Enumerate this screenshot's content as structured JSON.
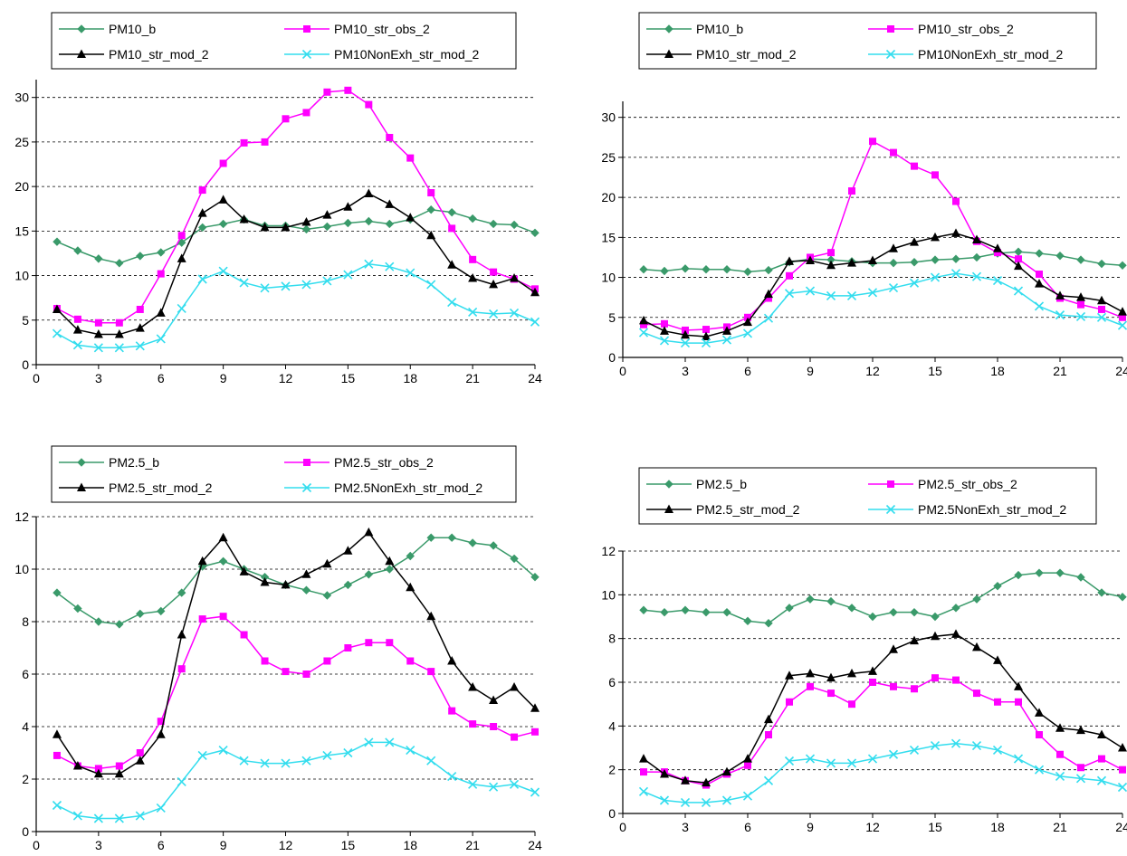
{
  "chart_data": [
    {
      "type": "line",
      "x": [
        1,
        2,
        3,
        4,
        5,
        6,
        7,
        8,
        9,
        10,
        11,
        12,
        13,
        14,
        15,
        16,
        17,
        18,
        19,
        20,
        21,
        22,
        23,
        24
      ],
      "xticks": [
        "0",
        "3",
        "6",
        "9",
        "12",
        "15",
        "18",
        "21",
        "24"
      ],
      "yticks": [
        "0",
        "5",
        "10",
        "15",
        "20",
        "25",
        "30"
      ],
      "xlim": [
        0,
        24
      ],
      "ylim": [
        0,
        32
      ],
      "grid": true,
      "legend": "top",
      "series": [
        {
          "name": "PM10_b",
          "color": "#3a9a6a",
          "marker": "diamond",
          "values": [
            13.8,
            12.8,
            11.9,
            11.4,
            12.2,
            12.6,
            13.7,
            15.4,
            15.8,
            16.3,
            15.6,
            15.6,
            15.2,
            15.5,
            15.9,
            16.1,
            15.8,
            16.3,
            17.4,
            17.1,
            16.4,
            15.8,
            15.7,
            14.8
          ]
        },
        {
          "name": "PM10_str_obs_2",
          "color": "#ff00ff",
          "marker": "square",
          "values": [
            6.3,
            5.1,
            4.7,
            4.7,
            6.2,
            10.2,
            14.5,
            19.6,
            22.6,
            24.9,
            25.0,
            27.6,
            28.3,
            30.6,
            30.8,
            29.2,
            25.5,
            23.2,
            19.3,
            15.3,
            11.8,
            10.4,
            9.6,
            8.5
          ]
        },
        {
          "name": "PM10_str_mod_2",
          "color": "#000000",
          "marker": "triangle",
          "values": [
            6.2,
            3.9,
            3.4,
            3.4,
            4.1,
            5.8,
            11.9,
            17.0,
            18.5,
            16.3,
            15.4,
            15.4,
            16.0,
            16.8,
            17.7,
            19.2,
            18.0,
            16.5,
            14.5,
            11.2,
            9.7,
            9.0,
            9.7,
            8.1
          ]
        },
        {
          "name": "PM10NonExh_str_mod_2",
          "color": "#33ddee",
          "marker": "x",
          "values": [
            3.5,
            2.2,
            1.9,
            1.9,
            2.1,
            2.9,
            6.3,
            9.6,
            10.5,
            9.2,
            8.6,
            8.8,
            9.0,
            9.4,
            10.1,
            11.3,
            11.0,
            10.3,
            9.0,
            7.0,
            5.9,
            5.7,
            5.8,
            4.8
          ]
        }
      ]
    },
    {
      "type": "line",
      "x": [
        1,
        2,
        3,
        4,
        5,
        6,
        7,
        8,
        9,
        10,
        11,
        12,
        13,
        14,
        15,
        16,
        17,
        18,
        19,
        20,
        21,
        22,
        23,
        24
      ],
      "xticks": [
        "0",
        "3",
        "6",
        "9",
        "12",
        "15",
        "18",
        "21",
        "24"
      ],
      "yticks": [
        "0",
        "5",
        "10",
        "15",
        "20",
        "25",
        "30"
      ],
      "xlim": [
        0,
        24
      ],
      "ylim": [
        0,
        32
      ],
      "grid": true,
      "legend": "top",
      "series": [
        {
          "name": "PM10_b",
          "color": "#3a9a6a",
          "marker": "diamond",
          "values": [
            11.0,
            10.8,
            11.1,
            11.0,
            11.0,
            10.7,
            10.9,
            11.9,
            12.3,
            12.2,
            12.0,
            11.8,
            11.8,
            11.9,
            12.2,
            12.3,
            12.5,
            13.0,
            13.2,
            13.0,
            12.7,
            12.2,
            11.7,
            11.5
          ]
        },
        {
          "name": "PM10_str_obs_2",
          "color": "#ff00ff",
          "marker": "square",
          "values": [
            4.1,
            4.2,
            3.4,
            3.5,
            3.8,
            5.0,
            7.4,
            10.2,
            12.5,
            13.1,
            20.8,
            27.0,
            25.6,
            23.9,
            22.8,
            19.5,
            14.5,
            13.1,
            12.3,
            10.4,
            7.4,
            6.6,
            6.0,
            5.0
          ]
        },
        {
          "name": "PM10_str_mod_2",
          "color": "#000000",
          "marker": "triangle",
          "values": [
            4.6,
            3.3,
            2.8,
            2.6,
            3.3,
            4.4,
            7.9,
            12.0,
            12.1,
            11.5,
            11.8,
            12.1,
            13.6,
            14.4,
            15.0,
            15.5,
            14.7,
            13.6,
            11.4,
            9.2,
            7.7,
            7.5,
            7.1,
            5.7
          ]
        },
        {
          "name": "PM10NonExh_str_mod_2",
          "color": "#33ddee",
          "marker": "x",
          "values": [
            3.1,
            2.1,
            1.8,
            1.8,
            2.2,
            3.0,
            4.9,
            8.0,
            8.3,
            7.7,
            7.7,
            8.1,
            8.7,
            9.3,
            10.0,
            10.5,
            10.1,
            9.6,
            8.3,
            6.4,
            5.3,
            5.1,
            5.0,
            4.0
          ]
        }
      ]
    },
    {
      "type": "line",
      "x": [
        1,
        2,
        3,
        4,
        5,
        6,
        7,
        8,
        9,
        10,
        11,
        12,
        13,
        14,
        15,
        16,
        17,
        18,
        19,
        20,
        21,
        22,
        23,
        24
      ],
      "xticks": [
        "0",
        "3",
        "6",
        "9",
        "12",
        "15",
        "18",
        "21",
        "24"
      ],
      "yticks": [
        "0",
        "2",
        "4",
        "6",
        "8",
        "10",
        "12"
      ],
      "xlim": [
        0,
        24
      ],
      "ylim": [
        0,
        12
      ],
      "grid": true,
      "legend": "top",
      "series": [
        {
          "name": "PM2.5_b",
          "color": "#3a9a6a",
          "marker": "diamond",
          "values": [
            9.1,
            8.5,
            8.0,
            7.9,
            8.3,
            8.4,
            9.1,
            10.1,
            10.3,
            10.0,
            9.7,
            9.4,
            9.2,
            9.0,
            9.4,
            9.8,
            10.0,
            10.5,
            11.2,
            11.2,
            11.0,
            10.9,
            10.4,
            9.7
          ]
        },
        {
          "name": "PM2.5_str_obs_2",
          "color": "#ff00ff",
          "marker": "square",
          "values": [
            2.9,
            2.5,
            2.4,
            2.5,
            3.0,
            4.2,
            6.2,
            8.1,
            8.2,
            7.5,
            6.5,
            6.1,
            6.0,
            6.5,
            7.0,
            7.2,
            7.2,
            6.5,
            6.1,
            4.6,
            4.1,
            4.0,
            3.6,
            3.8
          ]
        },
        {
          "name": "PM2.5_str_mod_2",
          "color": "#000000",
          "marker": "triangle",
          "values": [
            3.7,
            2.5,
            2.2,
            2.2,
            2.7,
            3.7,
            7.5,
            10.3,
            11.2,
            9.9,
            9.5,
            9.4,
            9.8,
            10.2,
            10.7,
            11.4,
            10.3,
            9.3,
            8.2,
            6.5,
            5.5,
            5.0,
            5.5,
            4.7
          ]
        },
        {
          "name": "PM2.5NonExh_str_mod_2",
          "color": "#33ddee",
          "marker": "x",
          "values": [
            1.0,
            0.6,
            0.5,
            0.5,
            0.6,
            0.9,
            1.9,
            2.9,
            3.1,
            2.7,
            2.6,
            2.6,
            2.7,
            2.9,
            3.0,
            3.4,
            3.4,
            3.1,
            2.7,
            2.1,
            1.8,
            1.7,
            1.8,
            1.5
          ]
        }
      ]
    },
    {
      "type": "line",
      "x": [
        1,
        2,
        3,
        4,
        5,
        6,
        7,
        8,
        9,
        10,
        11,
        12,
        13,
        14,
        15,
        16,
        17,
        18,
        19,
        20,
        21,
        22,
        23,
        24
      ],
      "xticks": [
        "0",
        "3",
        "6",
        "9",
        "12",
        "15",
        "18",
        "21",
        "24"
      ],
      "yticks": [
        "0",
        "2",
        "4",
        "6",
        "8",
        "10",
        "12"
      ],
      "xlim": [
        0,
        24
      ],
      "ylim": [
        0,
        12
      ],
      "grid": true,
      "legend": "top",
      "series": [
        {
          "name": "PM2.5_b",
          "color": "#3a9a6a",
          "marker": "diamond",
          "values": [
            9.3,
            9.2,
            9.3,
            9.2,
            9.2,
            8.8,
            8.7,
            9.4,
            9.8,
            9.7,
            9.4,
            9.0,
            9.2,
            9.2,
            9.0,
            9.4,
            9.8,
            10.4,
            10.9,
            11.0,
            11.0,
            10.8,
            10.1,
            9.9
          ]
        },
        {
          "name": "PM2.5_str_obs_2",
          "color": "#ff00ff",
          "marker": "square",
          "values": [
            1.9,
            1.9,
            1.5,
            1.3,
            1.8,
            2.2,
            3.6,
            5.1,
            5.8,
            5.5,
            5.0,
            6.0,
            5.8,
            5.7,
            6.2,
            6.1,
            5.5,
            5.1,
            5.1,
            3.6,
            2.7,
            2.1,
            2.5,
            2.0
          ]
        },
        {
          "name": "PM2.5_str_mod_2",
          "color": "#000000",
          "marker": "triangle",
          "values": [
            2.5,
            1.8,
            1.5,
            1.4,
            1.9,
            2.5,
            4.3,
            6.3,
            6.4,
            6.2,
            6.4,
            6.5,
            7.5,
            7.9,
            8.1,
            8.2,
            7.6,
            7.0,
            5.8,
            4.6,
            3.9,
            3.8,
            3.6,
            3.0
          ]
        },
        {
          "name": "PM2.5NonExh_str_mod_2",
          "color": "#33ddee",
          "marker": "x",
          "values": [
            1.0,
            0.6,
            0.5,
            0.5,
            0.6,
            0.8,
            1.5,
            2.4,
            2.5,
            2.3,
            2.3,
            2.5,
            2.7,
            2.9,
            3.1,
            3.2,
            3.1,
            2.9,
            2.5,
            2.0,
            1.7,
            1.6,
            1.5,
            1.2
          ]
        }
      ]
    }
  ]
}
